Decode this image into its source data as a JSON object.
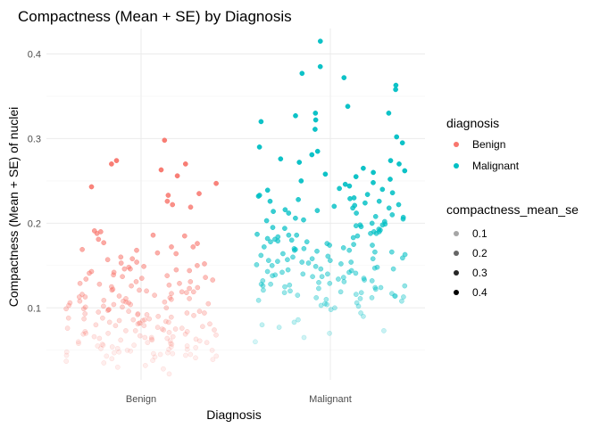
{
  "chart_data": {
    "type": "scatter",
    "title": "Compactness (Mean + SE) by Diagnosis",
    "xlabel": "Diagnosis",
    "ylabel": "Compactness (Mean + SE) of nuclei",
    "categories": [
      "Benign",
      "Malignant"
    ],
    "ylim": [
      0.015,
      0.43
    ],
    "yticks": [
      0.1,
      0.2,
      0.3,
      0.4
    ],
    "grid": true,
    "jitter_width": 0.4,
    "colors": {
      "Benign": "#F8766D",
      "Malignant": "#00BFC4"
    },
    "legend": {
      "placement": "right",
      "color_title": "diagnosis",
      "color_entries": [
        "Benign",
        "Malignant"
      ],
      "alpha_title": "compactness_mean_se",
      "alpha_entries": [
        0.1,
        0.2,
        0.3,
        0.4
      ]
    },
    "series": [
      {
        "name": "Benign",
        "values": [
          0.298,
          0.27,
          0.263,
          0.247,
          0.233,
          0.226,
          0.243,
          0.235,
          0.222,
          0.219,
          0.256,
          0.274,
          0.27,
          0.191,
          0.186,
          0.19,
          0.188,
          0.185,
          0.176,
          0.172,
          0.169,
          0.168,
          0.164,
          0.16,
          0.157,
          0.153,
          0.152,
          0.15,
          0.148,
          0.146,
          0.144,
          0.143,
          0.141,
          0.139,
          0.137,
          0.135,
          0.133,
          0.131,
          0.129,
          0.128,
          0.126,
          0.124,
          0.123,
          0.121,
          0.12,
          0.119,
          0.117,
          0.116,
          0.115,
          0.113,
          0.112,
          0.111,
          0.11,
          0.109,
          0.108,
          0.107,
          0.106,
          0.105,
          0.104,
          0.103,
          0.102,
          0.101,
          0.1,
          0.099,
          0.098,
          0.097,
          0.096,
          0.095,
          0.094,
          0.093,
          0.092,
          0.091,
          0.09,
          0.089,
          0.088,
          0.087,
          0.086,
          0.085,
          0.084,
          0.083,
          0.082,
          0.081,
          0.08,
          0.079,
          0.078,
          0.077,
          0.076,
          0.075,
          0.074,
          0.073,
          0.072,
          0.071,
          0.07,
          0.069,
          0.068,
          0.067,
          0.066,
          0.065,
          0.064,
          0.063,
          0.062,
          0.061,
          0.06,
          0.059,
          0.058,
          0.057,
          0.056,
          0.055,
          0.054,
          0.053,
          0.052,
          0.051,
          0.05,
          0.049,
          0.048,
          0.047,
          0.046,
          0.045,
          0.044,
          0.043,
          0.042,
          0.041,
          0.04,
          0.037,
          0.035,
          0.032,
          0.028,
          0.022,
          0.138,
          0.121,
          0.107,
          0.094,
          0.083,
          0.072,
          0.063,
          0.055,
          0.047,
          0.158,
          0.142,
          0.127,
          0.114,
          0.101,
          0.088,
          0.079,
          0.069,
          0.059,
          0.05,
          0.172,
          0.149,
          0.131,
          0.118,
          0.104,
          0.092,
          0.081,
          0.07,
          0.061,
          0.052,
          0.044,
          0.165,
          0.146,
          0.129,
          0.113,
          0.099,
          0.087,
          0.076,
          0.066,
          0.057,
          0.048,
          0.181,
          0.154,
          0.136,
          0.122,
          0.108,
          0.096,
          0.085,
          0.074,
          0.064,
          0.056,
          0.046,
          0.039,
          0.177,
          0.145,
          0.125,
          0.111,
          0.098,
          0.086,
          0.075,
          0.065,
          0.058,
          0.051,
          0.043,
          0.134,
          0.119,
          0.106,
          0.093,
          0.082,
          0.073,
          0.062,
          0.054,
          0.045,
          0.038,
          0.03
        ],
        "alphas": null
      },
      {
        "name": "Malignant",
        "values": [
          0.415,
          0.385,
          0.372,
          0.377,
          0.363,
          0.358,
          0.338,
          0.33,
          0.33,
          0.327,
          0.32,
          0.322,
          0.311,
          0.302,
          0.295,
          0.29,
          0.285,
          0.281,
          0.276,
          0.274,
          0.272,
          0.27,
          0.265,
          0.262,
          0.26,
          0.258,
          0.255,
          0.252,
          0.25,
          0.248,
          0.246,
          0.244,
          0.241,
          0.239,
          0.236,
          0.234,
          0.232,
          0.23,
          0.228,
          0.226,
          0.224,
          0.222,
          0.22,
          0.218,
          0.216,
          0.214,
          0.212,
          0.21,
          0.208,
          0.206,
          0.204,
          0.202,
          0.2,
          0.198,
          0.196,
          0.194,
          0.192,
          0.19,
          0.188,
          0.186,
          0.184,
          0.182,
          0.18,
          0.178,
          0.176,
          0.174,
          0.172,
          0.17,
          0.168,
          0.166,
          0.164,
          0.162,
          0.16,
          0.158,
          0.156,
          0.154,
          0.152,
          0.15,
          0.148,
          0.146,
          0.144,
          0.142,
          0.14,
          0.138,
          0.136,
          0.134,
          0.132,
          0.13,
          0.128,
          0.126,
          0.124,
          0.122,
          0.12,
          0.118,
          0.116,
          0.114,
          0.112,
          0.11,
          0.108,
          0.106,
          0.104,
          0.102,
          0.1,
          0.098,
          0.094,
          0.09,
          0.086,
          0.083,
          0.08,
          0.077,
          0.073,
          0.07,
          0.065,
          0.06,
          0.226,
          0.205,
          0.188,
          0.171,
          0.159,
          0.147,
          0.135,
          0.124,
          0.113,
          0.218,
          0.197,
          0.181,
          0.166,
          0.153,
          0.141,
          0.129,
          0.117,
          0.105,
          0.233,
          0.212,
          0.195,
          0.179,
          0.163,
          0.149,
          0.137,
          0.126,
          0.114,
          0.103,
          0.229,
          0.207,
          0.19,
          0.174,
          0.158,
          0.145,
          0.133,
          0.121,
          0.109,
          0.24,
          0.215,
          0.199,
          0.183,
          0.168,
          0.155,
          0.143,
          0.131,
          0.119,
          0.221,
          0.203,
          0.186,
          0.17,
          0.156,
          0.142,
          0.128,
          0.115,
          0.198,
          0.178,
          0.161,
          0.146,
          0.132,
          0.118,
          0.185,
          0.167,
          0.151,
          0.139,
          0.125,
          0.111,
          0.193,
          0.175,
          0.157,
          0.14,
          0.127,
          0.112,
          0.187,
          0.169,
          0.154,
          0.137,
          0.123
        ],
        "alphas": null
      }
    ]
  }
}
